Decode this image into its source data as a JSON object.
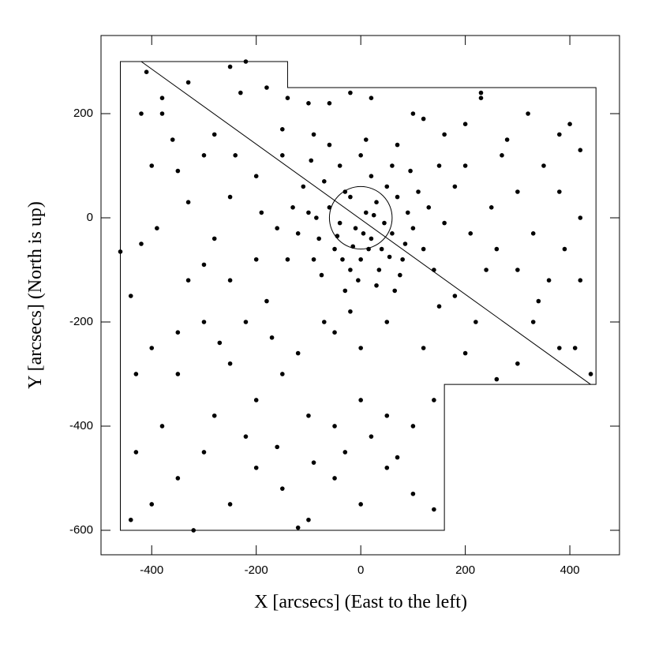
{
  "chart_data": {
    "type": "scatter",
    "x_label": "X [arcsecs] (East to the left)",
    "y_label": "Y [arcsecs] (North is up)",
    "xlim": [
      -497,
      495
    ],
    "ylim": [
      -647,
      350
    ],
    "xticks": [
      -400,
      -200,
      0,
      200,
      400
    ],
    "yticks": [
      -600,
      -400,
      -200,
      0,
      200
    ],
    "color": "#000000",
    "polygon": {
      "x": [
        -460,
        -140,
        -140,
        450,
        450,
        160,
        160,
        -460
      ],
      "y": [
        300,
        300,
        250,
        250,
        -320,
        -320,
        -600,
        -600
      ]
    },
    "line": {
      "x": [
        -420,
        440
      ],
      "y": [
        300,
        -320
      ]
    },
    "circle": {
      "cx": 0,
      "cy": 0,
      "r": 60
    },
    "x": [
      -10,
      20,
      40,
      -40,
      60,
      -60,
      10,
      30,
      -30,
      50,
      -80,
      80,
      0,
      -20,
      100,
      -100,
      70,
      -70,
      120,
      -120,
      15,
      -5,
      35,
      90,
      -50,
      -90,
      110,
      -110,
      60,
      -40,
      0,
      20,
      -20,
      45,
      -45,
      75,
      -75,
      130,
      -130,
      5,
      25,
      -15,
      55,
      -35,
      85,
      -85,
      95,
      -95,
      140,
      -140,
      30,
      -30,
      65,
      150,
      -150,
      10,
      -60,
      70,
      160,
      -160,
      200,
      -200,
      180,
      -180,
      250,
      -250,
      220,
      -220,
      100,
      -100,
      50,
      -50,
      280,
      -280,
      300,
      -300,
      0,
      120,
      -120,
      230,
      -230,
      350,
      -350,
      400,
      420,
      380,
      330,
      300,
      420,
      380,
      -380,
      -400,
      -420,
      -440,
      -400,
      -350,
      -300,
      -250,
      -200,
      -150,
      -100,
      -50,
      0,
      50,
      100,
      140,
      -430,
      -400,
      -350,
      -300,
      -250,
      -200,
      -150,
      -100,
      -50,
      0,
      50,
      100,
      140,
      -320,
      -120,
      -440,
      -380,
      -280,
      -220,
      -160,
      -90,
      -30,
      20,
      70,
      -410,
      -330,
      -250,
      -180,
      -60,
      20,
      120,
      230,
      320,
      380,
      420,
      410,
      440,
      260,
      200,
      150,
      -20,
      -70,
      -170,
      -270,
      -350,
      -430,
      -460,
      -390,
      -330,
      -280,
      -240,
      -190,
      -330,
      -250,
      -200,
      260,
      330,
      360,
      300,
      270,
      200,
      340,
      390,
      -360,
      -300,
      -420,
      -380,
      -150,
      -90,
      180,
      210,
      240,
      160,
      -140,
      -20,
      -220
    ],
    "y": [
      -20,
      -40,
      -60,
      -10,
      -30,
      20,
      10,
      30,
      50,
      60,
      -40,
      -80,
      -80,
      -100,
      -20,
      10,
      40,
      70,
      -60,
      -30,
      -60,
      -120,
      -100,
      10,
      -60,
      -80,
      50,
      60,
      100,
      100,
      120,
      80,
      40,
      -10,
      -35,
      -110,
      -110,
      20,
      20,
      -30,
      5,
      -55,
      -75,
      -80,
      -50,
      0,
      90,
      110,
      -100,
      -80,
      -130,
      -140,
      -140,
      100,
      120,
      150,
      140,
      140,
      -10,
      -20,
      100,
      80,
      -150,
      -160,
      20,
      40,
      -200,
      -200,
      200,
      220,
      -200,
      -220,
      150,
      160,
      -100,
      -90,
      -250,
      -250,
      -260,
      230,
      240,
      100,
      90,
      180,
      -120,
      -250,
      -200,
      -280,
      0,
      50,
      200,
      100,
      -50,
      -150,
      -250,
      -300,
      -200,
      -280,
      -350,
      -300,
      -380,
      -400,
      -350,
      -380,
      -400,
      -350,
      -450,
      -550,
      -500,
      -450,
      -550,
      -480,
      -520,
      -580,
      -500,
      -550,
      -480,
      -530,
      -560,
      -600,
      -595,
      -580,
      -400,
      -380,
      -420,
      -440,
      -470,
      -450,
      -420,
      -460,
      280,
      260,
      290,
      250,
      220,
      230,
      190,
      240,
      200,
      160,
      130,
      -250,
      -300,
      -310,
      -260,
      -170,
      -180,
      -200,
      -230,
      -240,
      -220,
      -300,
      -65,
      -20,
      30,
      -40,
      120,
      10,
      -120,
      -120,
      -80,
      -60,
      -30,
      -120,
      50,
      120,
      180,
      -160,
      -60,
      150,
      120,
      200,
      230,
      170,
      160,
      60,
      -30,
      -100,
      160,
      230,
      240,
      300
    ]
  }
}
